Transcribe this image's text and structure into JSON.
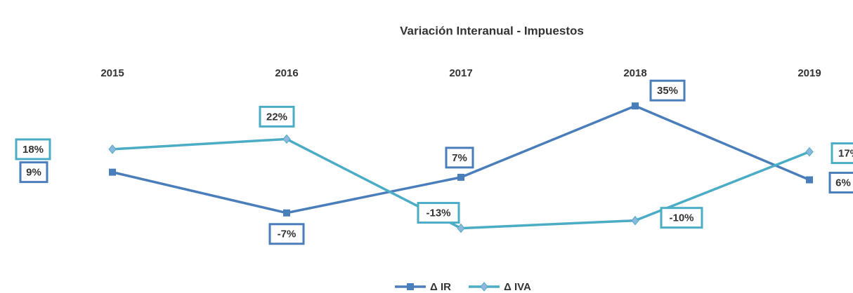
{
  "chart_data": {
    "type": "line",
    "title": "Variación Interanual - Impuestos",
    "categories": [
      "2015",
      "2016",
      "2017",
      "2018",
      "2019"
    ],
    "series": [
      {
        "name": "Δ IR",
        "color": "#4a7ebb",
        "marker": "square",
        "values": [
          9,
          -7,
          7,
          35,
          6
        ],
        "value_labels": [
          "9%",
          "-7%",
          "7%",
          "35%",
          "6%"
        ]
      },
      {
        "name": "Δ IVA",
        "color": "#4bacc6",
        "marker": "diamond",
        "values": [
          18,
          22,
          -13,
          -10,
          17
        ],
        "value_labels": [
          "18%",
          "22%",
          "-13%",
          "-10%",
          "17%"
        ]
      }
    ],
    "ylim": [
      -20,
      40
    ],
    "grid": false,
    "legend": "bottom"
  }
}
